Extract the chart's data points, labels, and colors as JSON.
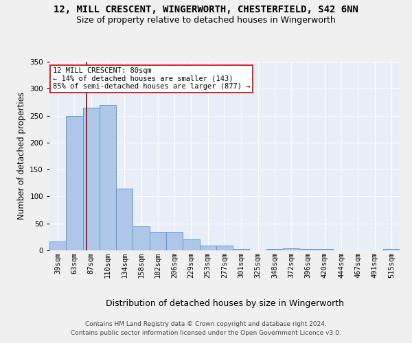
{
  "title_line1": "12, MILL CRESCENT, WINGERWORTH, CHESTERFIELD, S42 6NN",
  "title_line2": "Size of property relative to detached houses in Wingerworth",
  "xlabel": "Distribution of detached houses by size in Wingerworth",
  "ylabel": "Number of detached properties",
  "categories": [
    "39sqm",
    "63sqm",
    "87sqm",
    "110sqm",
    "134sqm",
    "158sqm",
    "182sqm",
    "206sqm",
    "229sqm",
    "253sqm",
    "277sqm",
    "301sqm",
    "325sqm",
    "348sqm",
    "372sqm",
    "396sqm",
    "420sqm",
    "444sqm",
    "467sqm",
    "491sqm",
    "515sqm"
  ],
  "values": [
    16,
    250,
    265,
    270,
    115,
    45,
    35,
    35,
    20,
    9,
    9,
    2,
    0,
    3,
    4,
    3,
    2,
    0,
    0,
    0,
    2
  ],
  "bar_color": "#aec6e8",
  "bar_edge_color": "#5b9bd5",
  "annotation_title": "12 MILL CRESCENT: 80sqm",
  "annotation_line1": "← 14% of detached houses are smaller (143)",
  "annotation_line2": "85% of semi-detached houses are larger (877) →",
  "red_line_color": "#cc0000",
  "annotation_box_color": "#ffffff",
  "annotation_box_edge": "#cc0000",
  "ylim": [
    0,
    350
  ],
  "yticks": [
    0,
    50,
    100,
    150,
    200,
    250,
    300,
    350
  ],
  "background_color": "#e8eef7",
  "grid_color": "#ffffff",
  "fig_background": "#f0f0f0",
  "title_fontsize": 10,
  "subtitle_fontsize": 9,
  "axis_label_fontsize": 8.5,
  "tick_fontsize": 7.5,
  "footer_fontsize": 6.5,
  "annotation_fontsize": 7.5
}
